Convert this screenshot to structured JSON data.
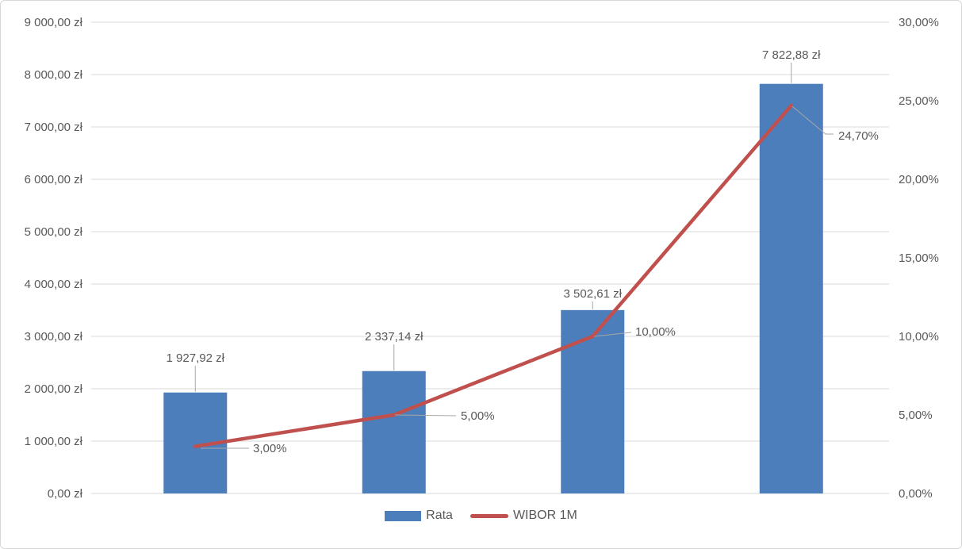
{
  "chart_data": {
    "type": "combo-bar-line",
    "categories": [
      "",
      "",
      "",
      ""
    ],
    "series": [
      {
        "name": "Rata",
        "type": "bar",
        "axis": "left",
        "color": "#4d7ebc",
        "values": [
          1927.92,
          2337.14,
          3502.61,
          7822.88
        ],
        "labels": [
          "1 927,92 zł",
          "2 337,14 zł",
          "3 502,61 zł",
          "7 822,88 zł"
        ]
      },
      {
        "name": "WIBOR 1M",
        "type": "line",
        "axis": "right",
        "color": "#c0504d",
        "values": [
          3.0,
          5.0,
          10.0,
          24.7
        ],
        "labels": [
          "3,00%",
          "5,00%",
          "10,00%",
          "24,70%"
        ]
      }
    ],
    "left_axis": {
      "min": 0,
      "max": 9000,
      "step": 1000,
      "ticks": [
        "0,00 zł",
        "1 000,00 zł",
        "2 000,00 zł",
        "3 000,00 zł",
        "4 000,00 zł",
        "5 000,00 zł",
        "6 000,00 zł",
        "7 000,00 zł",
        "8 000,00 zł",
        "9 000,00 zł"
      ]
    },
    "right_axis": {
      "min": 0,
      "max": 30,
      "step": 5,
      "ticks": [
        "0,00%",
        "5,00%",
        "10,00%",
        "15,00%",
        "20,00%",
        "25,00%",
        "30,00%"
      ]
    },
    "title": "",
    "xlabel": "",
    "ylabel": "",
    "grid": true,
    "legend_position": "bottom"
  },
  "legend": {
    "items": [
      {
        "label": "Rata",
        "swatch": "bar",
        "color": "#4d7ebc"
      },
      {
        "label": "WIBOR 1M",
        "swatch": "line",
        "color": "#c0504d"
      }
    ]
  },
  "colors": {
    "bar": "#4d7ebc",
    "line": "#c0504d",
    "gridline": "#d9d9d9",
    "leader": "#a6a6a6",
    "axis_text": "#595959",
    "frame_border": "#d7d7d7",
    "background": "#ffffff"
  }
}
